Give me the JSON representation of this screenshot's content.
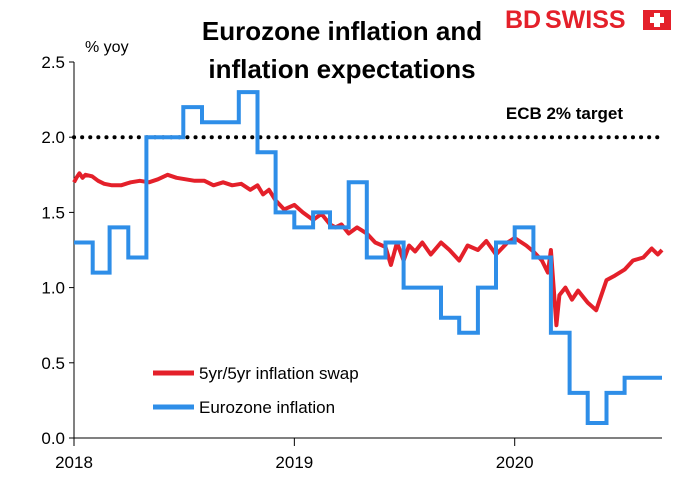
{
  "brand": {
    "name_bd": "BD",
    "name_swiss": "SWISS",
    "color": "#e4202a"
  },
  "chart_data": {
    "type": "line",
    "title_lines": [
      "Eurozone inflation and",
      "inflation expectations"
    ],
    "ylabel": "% yoy",
    "ylim": [
      0,
      2.5
    ],
    "yticks": [
      "0.0",
      "0.5",
      "1.0",
      "1.5",
      "2.0",
      "2.5"
    ],
    "xlim": [
      "2018-01",
      "2020-09"
    ],
    "xticks": [
      "2018",
      "2019",
      "2020"
    ],
    "grid": false,
    "legend_position": "bottom-left",
    "target": {
      "value": 2.0,
      "label": "ECB 2% target",
      "style": "dotted"
    },
    "series": [
      {
        "name": "5yr/5yr inflation swap",
        "color": "#e4202a",
        "points": [
          [
            "2018-01-01",
            1.7
          ],
          [
            "2018-01-05",
            1.73
          ],
          [
            "2018-01-10",
            1.76
          ],
          [
            "2018-01-15",
            1.73
          ],
          [
            "2018-01-20",
            1.75
          ],
          [
            "2018-01-31",
            1.74
          ],
          [
            "2018-02-10",
            1.71
          ],
          [
            "2018-02-20",
            1.69
          ],
          [
            "2018-03-05",
            1.68
          ],
          [
            "2018-03-20",
            1.68
          ],
          [
            "2018-04-05",
            1.7
          ],
          [
            "2018-04-20",
            1.71
          ],
          [
            "2018-05-05",
            1.7
          ],
          [
            "2018-05-20",
            1.72
          ],
          [
            "2018-06-05",
            1.75
          ],
          [
            "2018-06-20",
            1.73
          ],
          [
            "2018-07-05",
            1.72
          ],
          [
            "2018-07-20",
            1.71
          ],
          [
            "2018-08-05",
            1.71
          ],
          [
            "2018-08-20",
            1.68
          ],
          [
            "2018-09-05",
            1.7
          ],
          [
            "2018-09-20",
            1.68
          ],
          [
            "2018-10-05",
            1.69
          ],
          [
            "2018-10-20",
            1.65
          ],
          [
            "2018-11-01",
            1.68
          ],
          [
            "2018-11-10",
            1.62
          ],
          [
            "2018-11-20",
            1.65
          ],
          [
            "2018-12-01",
            1.58
          ],
          [
            "2018-12-15",
            1.52
          ],
          [
            "2019-01-01",
            1.55
          ],
          [
            "2019-01-15",
            1.5
          ],
          [
            "2019-02-01",
            1.45
          ],
          [
            "2019-02-15",
            1.49
          ],
          [
            "2019-03-01",
            1.42
          ],
          [
            "2019-03-10",
            1.4
          ],
          [
            "2019-03-20",
            1.42
          ],
          [
            "2019-04-01",
            1.36
          ],
          [
            "2019-04-15",
            1.4
          ],
          [
            "2019-05-01",
            1.36
          ],
          [
            "2019-05-15",
            1.3
          ],
          [
            "2019-06-01",
            1.27
          ],
          [
            "2019-06-10",
            1.15
          ],
          [
            "2019-06-20",
            1.3
          ],
          [
            "2019-07-01",
            1.18
          ],
          [
            "2019-07-10",
            1.28
          ],
          [
            "2019-07-20",
            1.24
          ],
          [
            "2019-08-01",
            1.3
          ],
          [
            "2019-08-15",
            1.22
          ],
          [
            "2019-09-01",
            1.3
          ],
          [
            "2019-09-15",
            1.25
          ],
          [
            "2019-10-01",
            1.18
          ],
          [
            "2019-10-15",
            1.28
          ],
          [
            "2019-11-01",
            1.25
          ],
          [
            "2019-11-15",
            1.31
          ],
          [
            "2019-12-01",
            1.22
          ],
          [
            "2019-12-20",
            1.3
          ],
          [
            "2020-01-01",
            1.33
          ],
          [
            "2020-01-20",
            1.28
          ],
          [
            "2020-02-01",
            1.24
          ],
          [
            "2020-02-15",
            1.18
          ],
          [
            "2020-02-25",
            1.1
          ],
          [
            "2020-03-01",
            1.25
          ],
          [
            "2020-03-10",
            0.75
          ],
          [
            "2020-03-15",
            0.95
          ],
          [
            "2020-03-25",
            1.0
          ],
          [
            "2020-04-05",
            0.92
          ],
          [
            "2020-04-15",
            0.98
          ],
          [
            "2020-05-01",
            0.9
          ],
          [
            "2020-05-15",
            0.85
          ],
          [
            "2020-06-01",
            1.05
          ],
          [
            "2020-06-15",
            1.08
          ],
          [
            "2020-07-01",
            1.12
          ],
          [
            "2020-07-15",
            1.18
          ],
          [
            "2020-08-01",
            1.2
          ],
          [
            "2020-08-15",
            1.26
          ],
          [
            "2020-08-25",
            1.22
          ],
          [
            "2020-09-01",
            1.25
          ]
        ]
      },
      {
        "name": "Eurozone inflation",
        "color": "#2e8ee8",
        "step": true,
        "points": [
          [
            "2018-01",
            1.3
          ],
          [
            "2018-02",
            1.1
          ],
          [
            "2018-03",
            1.4
          ],
          [
            "2018-04",
            1.2
          ],
          [
            "2018-05",
            2.0
          ],
          [
            "2018-06",
            2.0
          ],
          [
            "2018-07",
            2.2
          ],
          [
            "2018-08",
            2.1
          ],
          [
            "2018-09",
            2.1
          ],
          [
            "2018-10",
            2.3
          ],
          [
            "2018-11",
            1.9
          ],
          [
            "2018-12",
            1.5
          ],
          [
            "2019-01",
            1.4
          ],
          [
            "2019-02",
            1.5
          ],
          [
            "2019-03",
            1.4
          ],
          [
            "2019-04",
            1.7
          ],
          [
            "2019-05",
            1.2
          ],
          [
            "2019-06",
            1.3
          ],
          [
            "2019-07",
            1.0
          ],
          [
            "2019-08",
            1.0
          ],
          [
            "2019-09",
            0.8
          ],
          [
            "2019-10",
            0.7
          ],
          [
            "2019-11",
            1.0
          ],
          [
            "2019-12",
            1.3
          ],
          [
            "2020-01",
            1.4
          ],
          [
            "2020-02",
            1.2
          ],
          [
            "2020-03",
            0.7
          ],
          [
            "2020-04",
            0.3
          ],
          [
            "2020-05",
            0.1
          ],
          [
            "2020-06",
            0.3
          ],
          [
            "2020-07",
            0.4
          ],
          [
            "2020-08",
            0.4
          ]
        ]
      }
    ]
  }
}
